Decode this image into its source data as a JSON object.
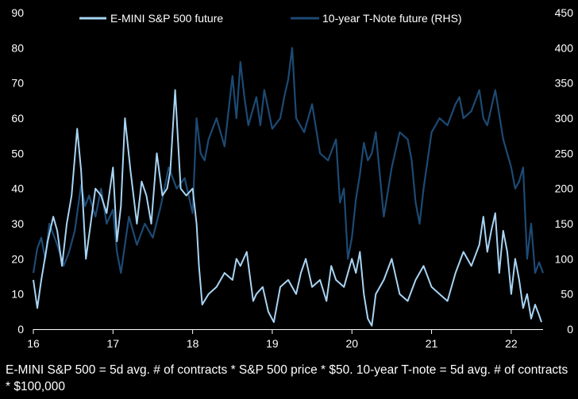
{
  "chart_data": {
    "type": "line",
    "title": "",
    "footnote": "E-MINI S&P 500 = 5d avg. # of contracts * S&P 500 price * $50. 10-year T-note = 5d avg. # of contracts * $100,000",
    "x_ticks": [
      "16",
      "17",
      "18",
      "19",
      "20",
      "21",
      "22"
    ],
    "x_range": [
      2016.0,
      2022.4
    ],
    "left_axis": {
      "ylim": [
        0,
        90
      ],
      "ticks": [
        "0",
        "10",
        "20",
        "30",
        "40",
        "50",
        "60",
        "70",
        "80",
        "90"
      ]
    },
    "right_axis": {
      "ylim": [
        0,
        450
      ],
      "ticks": [
        "0",
        "50",
        "100",
        "150",
        "200",
        "250",
        "300",
        "350",
        "400",
        "450"
      ]
    },
    "grid": false,
    "legend_placement": "top-center",
    "series": [
      {
        "name": "E-MINI S&P 500 future",
        "axis": "left",
        "color": "#a8d4f4",
        "x": [
          2016.0,
          2016.05,
          2016.1,
          2016.18,
          2016.25,
          2016.3,
          2016.36,
          2016.42,
          2016.48,
          2016.55,
          2016.6,
          2016.66,
          2016.72,
          2016.78,
          2016.85,
          2016.92,
          2017.0,
          2017.05,
          2017.1,
          2017.15,
          2017.22,
          2017.3,
          2017.36,
          2017.42,
          2017.48,
          2017.55,
          2017.62,
          2017.68,
          2017.72,
          2017.78,
          2017.85,
          2017.92,
          2018.0,
          2018.05,
          2018.08,
          2018.12,
          2018.2,
          2018.3,
          2018.4,
          2018.5,
          2018.55,
          2018.6,
          2018.68,
          2018.72,
          2018.76,
          2018.8,
          2018.88,
          2018.95,
          2019.02,
          2019.1,
          2019.2,
          2019.3,
          2019.36,
          2019.42,
          2019.5,
          2019.6,
          2019.68,
          2019.74,
          2019.8,
          2019.9,
          2020.0,
          2020.05,
          2020.1,
          2020.15,
          2020.2,
          2020.25,
          2020.3,
          2020.4,
          2020.5,
          2020.6,
          2020.7,
          2020.8,
          2020.9,
          2021.0,
          2021.1,
          2021.2,
          2021.3,
          2021.4,
          2021.5,
          2021.6,
          2021.65,
          2021.7,
          2021.75,
          2021.8,
          2021.85,
          2021.9,
          2021.95,
          2022.0,
          2022.05,
          2022.1,
          2022.15,
          2022.2,
          2022.25,
          2022.3,
          2022.35,
          2022.38
        ],
        "values": [
          14,
          6,
          14,
          25,
          32,
          28,
          18,
          30,
          38,
          57,
          45,
          20,
          30,
          40,
          38,
          33,
          46,
          25,
          35,
          60,
          45,
          30,
          42,
          38,
          30,
          50,
          38,
          40,
          45,
          68,
          40,
          38,
          40,
          30,
          18,
          7,
          10,
          12,
          16,
          14,
          20,
          18,
          22,
          15,
          8,
          10,
          12,
          5,
          2,
          12,
          14,
          10,
          16,
          20,
          12,
          14,
          8,
          18,
          14,
          12,
          20,
          16,
          22,
          10,
          3,
          1,
          10,
          14,
          20,
          10,
          8,
          14,
          18,
          12,
          10,
          8,
          16,
          22,
          18,
          24,
          32,
          22,
          28,
          33,
          16,
          28,
          22,
          10,
          20,
          14,
          6,
          10,
          3,
          7,
          4,
          2
        ]
      },
      {
        "name": "10-year T-Note future (RHS)",
        "axis": "right",
        "color": "#1d4a74",
        "x": [
          2016.0,
          2016.05,
          2016.1,
          2016.15,
          2016.2,
          2016.3,
          2016.38,
          2016.45,
          2016.52,
          2016.6,
          2016.65,
          2016.7,
          2016.78,
          2016.85,
          2016.92,
          2017.0,
          2017.05,
          2017.1,
          2017.2,
          2017.3,
          2017.4,
          2017.5,
          2017.6,
          2017.7,
          2017.8,
          2017.9,
          2018.0,
          2018.05,
          2018.1,
          2018.15,
          2018.2,
          2018.3,
          2018.4,
          2018.5,
          2018.55,
          2018.6,
          2018.65,
          2018.7,
          2018.8,
          2018.85,
          2018.9,
          2019.0,
          2019.1,
          2019.15,
          2019.2,
          2019.25,
          2019.3,
          2019.4,
          2019.5,
          2019.6,
          2019.7,
          2019.8,
          2019.85,
          2019.9,
          2019.95,
          2020.0,
          2020.05,
          2020.1,
          2020.15,
          2020.2,
          2020.25,
          2020.3,
          2020.4,
          2020.5,
          2020.6,
          2020.7,
          2020.75,
          2020.8,
          2020.85,
          2020.9,
          2021.0,
          2021.1,
          2021.2,
          2021.3,
          2021.35,
          2021.4,
          2021.5,
          2021.6,
          2021.65,
          2021.7,
          2021.8,
          2021.9,
          2022.0,
          2022.05,
          2022.1,
          2022.15,
          2022.2,
          2022.25,
          2022.3,
          2022.35,
          2022.4
        ],
        "values": [
          80,
          115,
          130,
          100,
          150,
          120,
          90,
          110,
          140,
          205,
          175,
          190,
          160,
          200,
          150,
          170,
          110,
          80,
          160,
          120,
          150,
          130,
          175,
          230,
          200,
          215,
          165,
          300,
          250,
          240,
          270,
          300,
          260,
          360,
          300,
          380,
          330,
          290,
          330,
          290,
          340,
          285,
          300,
          330,
          355,
          400,
          300,
          280,
          320,
          250,
          240,
          270,
          180,
          200,
          100,
          130,
          185,
          220,
          265,
          240,
          250,
          280,
          160,
          230,
          280,
          270,
          240,
          180,
          150,
          200,
          280,
          300,
          290,
          320,
          330,
          300,
          310,
          340,
          300,
          290,
          340,
          270,
          230,
          200,
          210,
          230,
          100,
          150,
          80,
          95,
          80
        ]
      }
    ]
  }
}
